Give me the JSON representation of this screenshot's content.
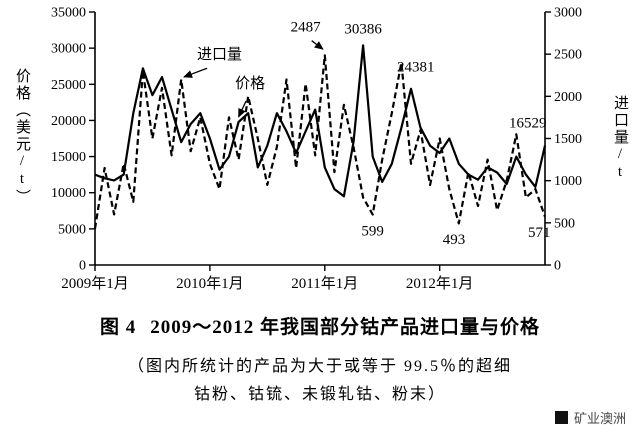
{
  "chart_data": {
    "type": "line",
    "title": "图4 2009～2012年我国部分钴产品进口量与价格",
    "months_total": 48,
    "x_tick_labels": [
      "2009年1月",
      "2010年1月",
      "2011年1月",
      "2012年1月"
    ],
    "x_tick_months": [
      0,
      12,
      24,
      36
    ],
    "left_axis": {
      "title": "价格（美元/t）",
      "min": 0,
      "max": 35000,
      "ticks": [
        0,
        5000,
        10000,
        15000,
        20000,
        25000,
        30000,
        35000
      ]
    },
    "right_axis": {
      "title": "进口量/t",
      "min": 0,
      "max": 3000,
      "ticks": [
        0,
        500,
        1000,
        1500,
        2000,
        2500,
        3000
      ]
    },
    "grid": false,
    "line_color": "#000000",
    "series": [
      {
        "key": "price",
        "name": "价格",
        "axis": "left",
        "style": "solid",
        "values": [
          12500,
          12000,
          11700,
          12500,
          21000,
          27200,
          23500,
          26000,
          21500,
          17000,
          19500,
          21000,
          17500,
          13200,
          15000,
          19800,
          21000,
          13500,
          16500,
          21000,
          18500,
          15500,
          18500,
          21500,
          13500,
          10500,
          9500,
          17000,
          30386,
          15000,
          11500,
          14000,
          19000,
          24381,
          19000,
          16500,
          15500,
          17500,
          14000,
          12500,
          11800,
          13500,
          12800,
          11200,
          15000,
          12500,
          10800,
          16529
        ]
      },
      {
        "key": "import-volume",
        "name": "进口量",
        "axis": "right",
        "style": "dashed",
        "values": [
          430,
          1150,
          600,
          1200,
          750,
          2300,
          1500,
          2100,
          1300,
          2200,
          1350,
          1750,
          1200,
          900,
          1750,
          1250,
          2000,
          1500,
          950,
          1400,
          2200,
          1150,
          2150,
          1300,
          2487,
          1100,
          1900,
          1400,
          800,
          599,
          1250,
          1800,
          2400,
          1200,
          1600,
          950,
          1500,
          900,
          493,
          1100,
          700,
          1250,
          650,
          1000,
          1550,
          800,
          900,
          571
        ]
      }
    ],
    "annotations": [
      {
        "text": "进口量",
        "month": 13.0,
        "value": 28500,
        "axis": "left",
        "arrow": {
          "month": 9.3,
          "value": 2230,
          "axis": "right"
        }
      },
      {
        "text": "价格",
        "month": 16.2,
        "value": 24500,
        "axis": "left",
        "arrow": {
          "month": 15.0,
          "value": 20500,
          "axis": "left"
        }
      },
      {
        "text": "2487",
        "month": 22.0,
        "value": 32300,
        "axis": "left",
        "arrow": {
          "month": 23.8,
          "value": 2560,
          "axis": "right"
        }
      },
      {
        "text": "30386",
        "month": 28.0,
        "value": 32000,
        "axis": "left"
      },
      {
        "text": "24381",
        "month": 33.5,
        "value": 26800,
        "axis": "left"
      },
      {
        "text": "16529",
        "month": 45.2,
        "value": 19000,
        "axis": "left"
      },
      {
        "text": "599",
        "month": 29.0,
        "value": 350,
        "axis": "right"
      },
      {
        "text": "493",
        "month": 37.5,
        "value": 250,
        "axis": "right"
      },
      {
        "text": "571",
        "month": 46.4,
        "value": 330,
        "axis": "right"
      }
    ]
  },
  "caption": {
    "figure_label": "图 4",
    "title": "2009～2012 年我国部分钴产品进口量与价格",
    "note_line1": "（图内所统计的产品为大于或等于 99.5％的超细",
    "note_line2": "钴粉、钴锍、未锻轧钴、粉末）"
  },
  "watermark": {
    "text": "矿业澳洲"
  }
}
